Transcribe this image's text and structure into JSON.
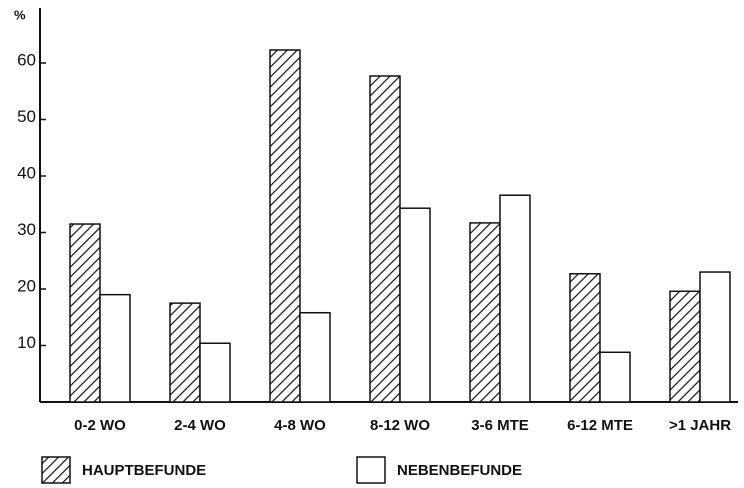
{
  "chart_data": {
    "type": "bar",
    "y_label": "%",
    "categories": [
      "0-2 WO",
      "2-4 WO",
      "4-8 WO",
      "8-12 WO",
      "3-6 MTE",
      "6-12 MTE",
      ">1 JAHR"
    ],
    "series": [
      {
        "name": "HAUPTBEFUNDE",
        "color": "#111111",
        "hatch": true,
        "values": [
          31.5,
          17.5,
          62.3,
          57.7,
          31.7,
          22.7,
          19.6
        ]
      },
      {
        "name": "NEBENBEFUNDE",
        "color": "#111111",
        "hatch": false,
        "values": [
          19,
          10.4,
          15.8,
          34.3,
          36.6,
          8.8,
          23
        ]
      }
    ],
    "ylim": [
      0,
      70
    ],
    "yticks": [
      10,
      20,
      30,
      40,
      50,
      60
    ],
    "legend": "bottom"
  }
}
